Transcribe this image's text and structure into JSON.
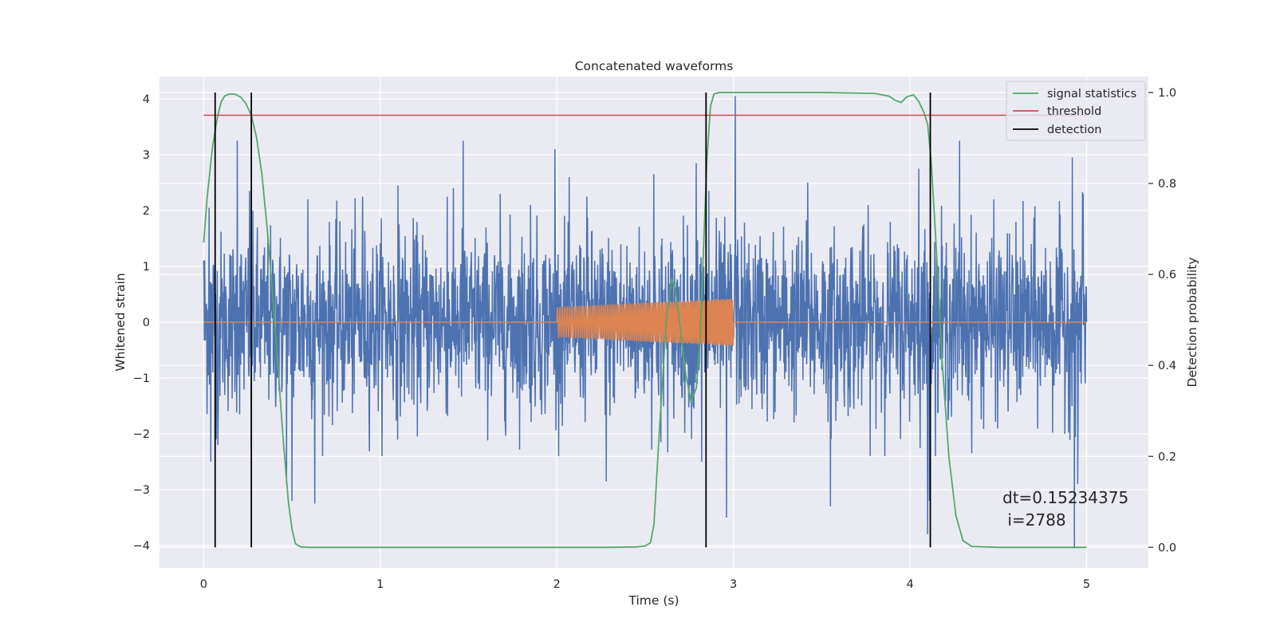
{
  "chart_data": {
    "type": "line",
    "title": "Concatenated waveforms",
    "xlabel": "Time (s)",
    "ylabel": "Whitened strain",
    "y2label": "Detection probability",
    "xlim": [
      -0.25,
      5.35
    ],
    "ylim": [
      -4.4,
      4.4
    ],
    "y2lim": [
      -0.045,
      1.035
    ],
    "xticks": [
      0,
      1,
      2,
      3,
      4,
      5
    ],
    "yticks": [
      -4,
      -3,
      -2,
      -1,
      0,
      1,
      2,
      3,
      4
    ],
    "y2ticks": [
      0.0,
      0.2,
      0.4,
      0.6,
      0.8,
      1.0
    ],
    "ytick_labels": [
      "−4",
      "−3",
      "−2",
      "−1",
      "0",
      "1",
      "2",
      "3",
      "4"
    ],
    "y2tick_labels": [
      "0.0",
      "0.2",
      "0.4",
      "0.6",
      "0.8",
      "1.0"
    ],
    "grid": true,
    "legend_position": "top-right",
    "colors": {
      "noise": "#4c72b0",
      "template": "#dd8452",
      "signal_statistics": "#55a868",
      "threshold": "#c44e52",
      "detection": "#000000",
      "background": "#eaeaf2",
      "grid": "#ffffff"
    },
    "series": [
      {
        "name": "",
        "role": "whitened-strain-noise",
        "axis": "left",
        "x_range": [
          0,
          5
        ],
        "typical_amplitude": 0.8,
        "peaks": [
          {
            "x": 0.0,
            "y": 1.1
          },
          {
            "x": 0.03,
            "y": 2.05
          },
          {
            "x": 0.04,
            "y": -2.5
          },
          {
            "x": 0.08,
            "y": -2.2
          },
          {
            "x": 0.19,
            "y": 3.25
          },
          {
            "x": 0.26,
            "y": 2.35
          },
          {
            "x": 0.27,
            "y": -2.2
          },
          {
            "x": 0.47,
            "y": -2.9
          },
          {
            "x": 0.5,
            "y": -3.2
          },
          {
            "x": 0.59,
            "y": 2.2
          },
          {
            "x": 0.63,
            "y": -3.25
          },
          {
            "x": 0.9,
            "y": 2.25
          },
          {
            "x": 1.1,
            "y": 2.45
          },
          {
            "x": 1.38,
            "y": 2.25
          },
          {
            "x": 1.47,
            "y": 3.25
          },
          {
            "x": 1.68,
            "y": 2.3
          },
          {
            "x": 1.85,
            "y": 2.1
          },
          {
            "x": 1.99,
            "y": 3.1
          },
          {
            "x": 2.07,
            "y": 2.6
          },
          {
            "x": 2.17,
            "y": 2.25
          },
          {
            "x": 2.28,
            "y": -2.85
          },
          {
            "x": 2.55,
            "y": 2.65
          },
          {
            "x": 2.59,
            "y": -2.15
          },
          {
            "x": 2.79,
            "y": 2.85
          },
          {
            "x": 2.82,
            "y": -2.5
          },
          {
            "x": 2.86,
            "y": 2.35
          },
          {
            "x": 2.96,
            "y": -3.5
          },
          {
            "x": 3.01,
            "y": 4.05
          },
          {
            "x": 3.42,
            "y": 2.5
          },
          {
            "x": 3.55,
            "y": -3.3
          },
          {
            "x": 4.05,
            "y": 2.75
          },
          {
            "x": 4.1,
            "y": -3.8
          },
          {
            "x": 4.11,
            "y": -3.2
          },
          {
            "x": 4.28,
            "y": 3.25
          },
          {
            "x": 4.92,
            "y": 2.95
          },
          {
            "x": 4.93,
            "y": -4.05
          },
          {
            "x": 4.95,
            "y": -2.9
          },
          {
            "x": 4.98,
            "y": 2.3
          }
        ]
      },
      {
        "name": "",
        "role": "injected-waveform",
        "axis": "left",
        "x_range": [
          0,
          5
        ],
        "burst_x_range": [
          2.0,
          3.0
        ],
        "burst_amplitude_start": 0.27,
        "burst_amplitude_end": 0.43
      },
      {
        "name": "signal statistics",
        "axis": "right",
        "x": [
          0.0,
          0.02,
          0.05,
          0.08,
          0.1,
          0.12,
          0.15,
          0.18,
          0.21,
          0.24,
          0.27,
          0.3,
          0.33,
          0.36,
          0.39,
          0.42,
          0.45,
          0.48,
          0.5,
          0.52,
          0.55,
          0.6,
          1.0,
          1.5,
          2.0,
          2.3,
          2.45,
          2.5,
          2.53,
          2.55,
          2.58,
          2.62,
          2.65,
          2.67,
          2.7,
          2.73,
          2.76,
          2.79,
          2.81,
          2.83,
          2.85,
          2.87,
          2.89,
          2.92,
          2.95,
          3.2,
          3.5,
          3.8,
          3.88,
          3.92,
          3.95,
          3.98,
          4.02,
          4.05,
          4.08,
          4.1,
          4.12,
          4.15,
          4.18,
          4.22,
          4.26,
          4.3,
          4.35,
          4.5,
          5.0
        ],
        "y": [
          0.67,
          0.77,
          0.88,
          0.95,
          0.98,
          0.993,
          0.997,
          0.996,
          0.99,
          0.975,
          0.95,
          0.9,
          0.82,
          0.7,
          0.56,
          0.4,
          0.24,
          0.1,
          0.04,
          0.008,
          0.001,
          0.0,
          0.0,
          0.0,
          0.0,
          0.0,
          0.001,
          0.003,
          0.01,
          0.05,
          0.25,
          0.5,
          0.59,
          0.57,
          0.48,
          0.38,
          0.32,
          0.35,
          0.45,
          0.65,
          0.85,
          0.97,
          0.997,
          1.0,
          1.0,
          1.0,
          1.0,
          0.998,
          0.992,
          0.982,
          0.978,
          0.99,
          0.995,
          0.98,
          0.955,
          0.93,
          0.85,
          0.65,
          0.42,
          0.2,
          0.07,
          0.015,
          0.002,
          0.0,
          0.0
        ]
      },
      {
        "name": "threshold",
        "axis": "right",
        "x": [
          0,
          5
        ],
        "y": [
          0.95,
          0.95
        ]
      },
      {
        "name": "detection",
        "axis": "right",
        "type": "vlines",
        "x": [
          0.065,
          0.27,
          2.845,
          4.115
        ],
        "ymin": 0.0,
        "ymax": 1.0
      }
    ],
    "annotation": {
      "line1": "dt=0.15234375",
      "line2": " i=2788"
    },
    "legend": [
      "signal statistics",
      "threshold",
      "detection"
    ]
  }
}
